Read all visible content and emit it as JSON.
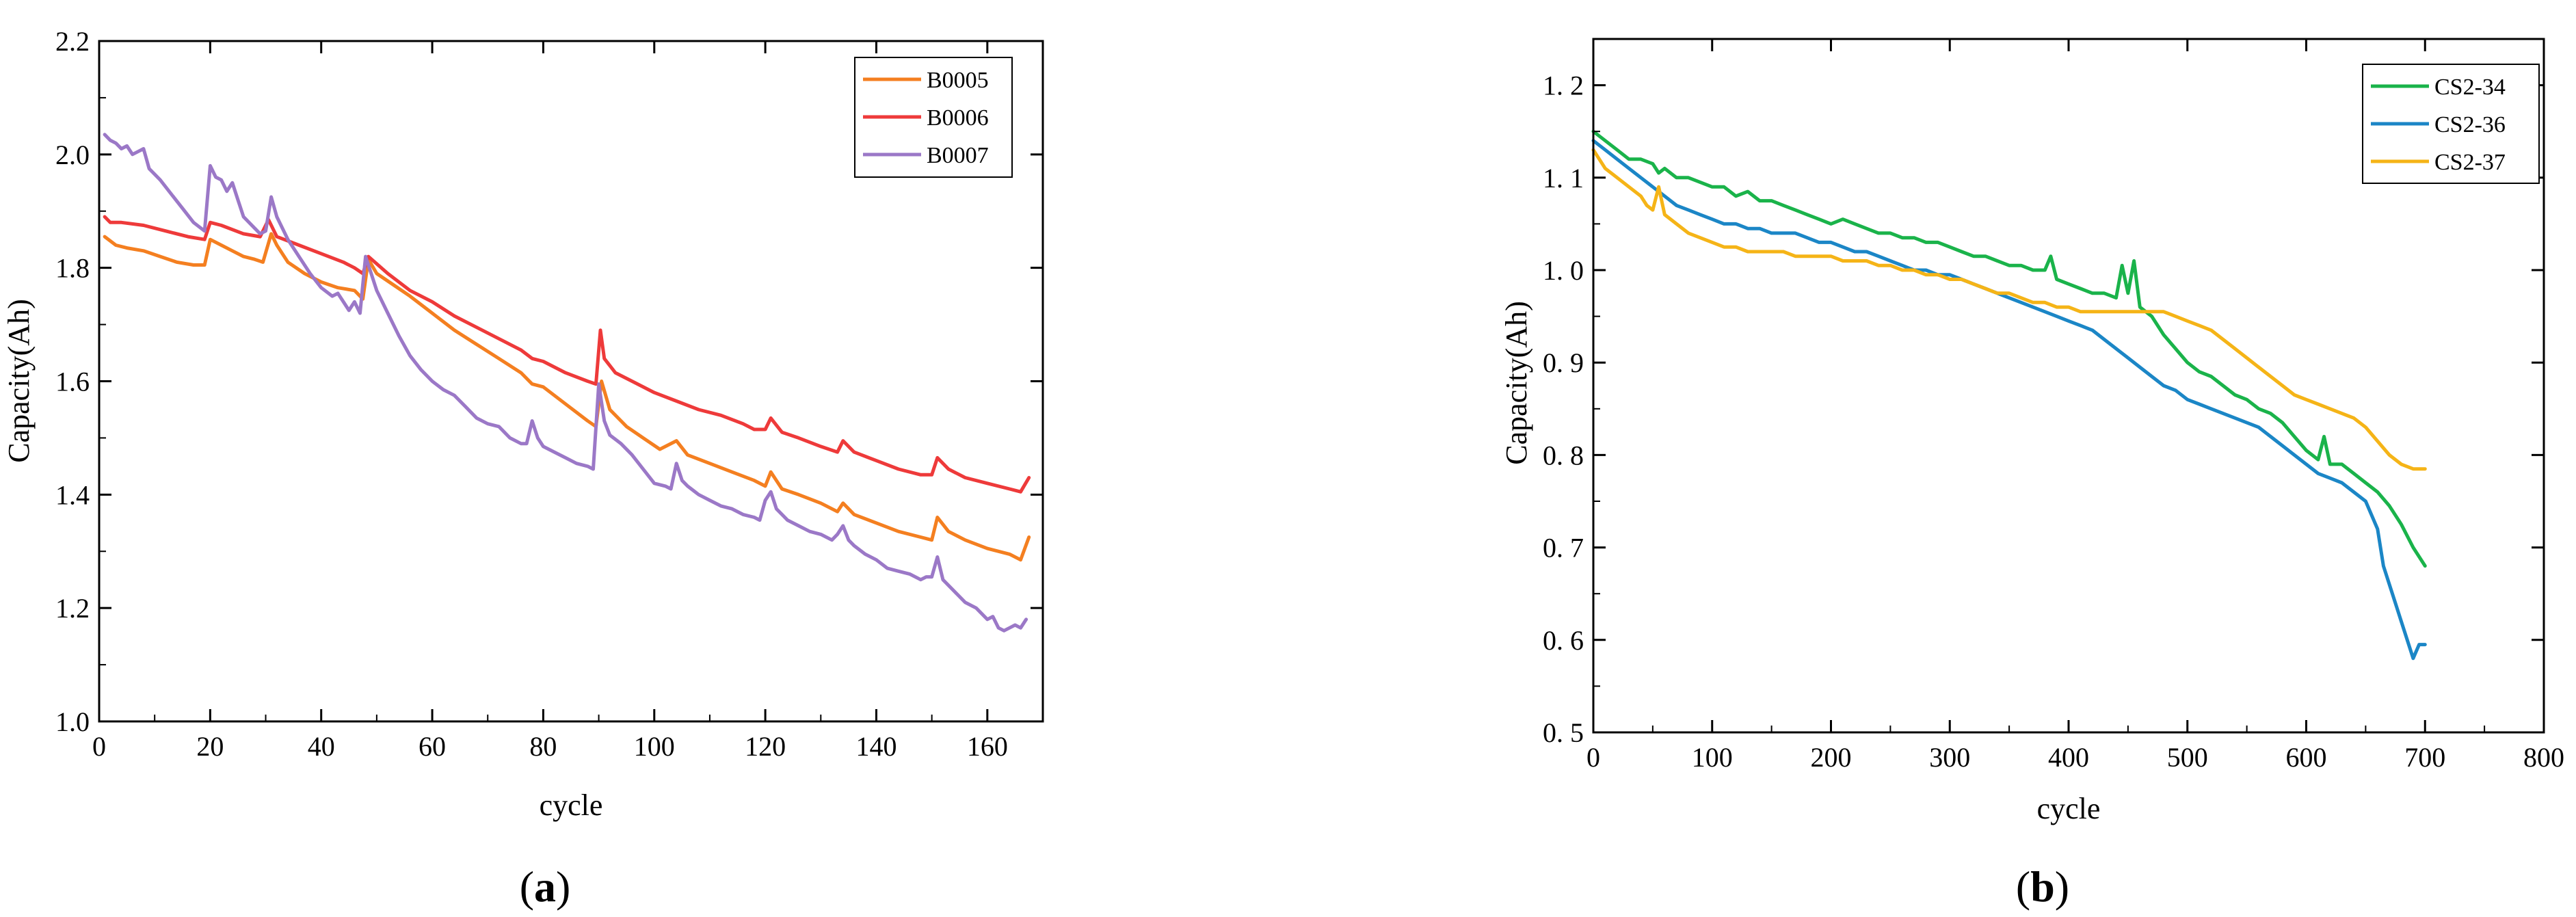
{
  "chart_data": [
    {
      "type": "line",
      "panel_label": {
        "open": "(",
        "letter": "a",
        "close": ")"
      },
      "xlabel": "cycle",
      "ylabel": "Capacity(Ah)",
      "xlim": [
        0,
        170
      ],
      "ylim": [
        1.0,
        2.2
      ],
      "xticks": [
        0,
        20,
        40,
        60,
        80,
        100,
        120,
        140,
        160
      ],
      "yticks": [
        1.0,
        1.2,
        1.4,
        1.6,
        1.8,
        2.0,
        2.2
      ],
      "xtick_labels": [
        "0",
        "20",
        "40",
        "60",
        "80",
        "100",
        "120",
        "140",
        "160"
      ],
      "ytick_labels": [
        "1.0",
        "1.2",
        "1.4",
        "1.6",
        "1.8",
        "2.0",
        "2.2"
      ],
      "legend_position": "top-right",
      "series": [
        {
          "name": "B0005",
          "color": "#F47F20",
          "x": [
            1,
            3,
            5,
            8,
            11,
            14,
            17,
            19,
            20,
            22,
            24,
            26,
            28,
            29.5,
            31,
            32,
            34,
            37,
            40,
            43,
            46,
            47.5,
            48.5,
            50,
            53,
            56,
            60,
            64,
            68,
            72,
            76,
            78,
            80,
            84,
            88,
            89.5,
            90.5,
            92,
            95,
            98,
            101,
            104,
            106,
            110,
            114,
            118,
            120,
            121,
            123,
            126,
            130,
            133,
            134,
            136,
            140,
            144,
            148,
            150,
            151,
            153,
            156,
            160,
            164,
            166,
            167.5
          ],
          "y": [
            1.855,
            1.84,
            1.835,
            1.83,
            1.82,
            1.81,
            1.805,
            1.805,
            1.85,
            1.84,
            1.83,
            1.82,
            1.815,
            1.81,
            1.86,
            1.84,
            1.81,
            1.79,
            1.775,
            1.765,
            1.76,
            1.745,
            1.815,
            1.79,
            1.77,
            1.75,
            1.72,
            1.69,
            1.665,
            1.64,
            1.615,
            1.595,
            1.59,
            1.56,
            1.53,
            1.52,
            1.6,
            1.55,
            1.52,
            1.5,
            1.48,
            1.495,
            1.47,
            1.455,
            1.44,
            1.425,
            1.415,
            1.44,
            1.41,
            1.4,
            1.385,
            1.37,
            1.385,
            1.365,
            1.35,
            1.335,
            1.325,
            1.32,
            1.36,
            1.335,
            1.32,
            1.305,
            1.295,
            1.285,
            1.325
          ]
        },
        {
          "name": "B0006",
          "color": "#EE3A3A",
          "x": [
            1,
            2,
            4,
            8,
            12,
            16,
            19,
            20,
            22,
            26,
            29,
            30.5,
            32,
            36,
            40,
            44,
            46,
            47.5,
            48.5,
            52,
            56,
            60,
            64,
            68,
            72,
            76,
            78,
            80,
            84,
            88,
            89.5,
            90.3,
            91,
            93,
            96,
            100,
            104,
            108,
            112,
            116,
            118,
            120,
            121,
            123,
            126,
            130,
            133,
            134,
            136,
            140,
            144,
            148,
            150,
            151,
            153,
            156,
            160,
            164,
            166,
            167.5
          ],
          "y": [
            1.89,
            1.88,
            1.88,
            1.875,
            1.865,
            1.855,
            1.85,
            1.88,
            1.875,
            1.86,
            1.855,
            1.885,
            1.855,
            1.84,
            1.825,
            1.81,
            1.8,
            1.79,
            1.82,
            1.79,
            1.76,
            1.74,
            1.715,
            1.695,
            1.675,
            1.655,
            1.64,
            1.635,
            1.615,
            1.6,
            1.595,
            1.69,
            1.64,
            1.615,
            1.6,
            1.58,
            1.565,
            1.55,
            1.54,
            1.525,
            1.515,
            1.515,
            1.535,
            1.51,
            1.5,
            1.485,
            1.475,
            1.495,
            1.475,
            1.46,
            1.445,
            1.435,
            1.435,
            1.465,
            1.445,
            1.43,
            1.42,
            1.41,
            1.405,
            1.43
          ]
        },
        {
          "name": "B0007",
          "color": "#9B78C7",
          "x": [
            1,
            2,
            3,
            4,
            5,
            6,
            7,
            8,
            9,
            11,
            13,
            15,
            17,
            19,
            20,
            21,
            22,
            23,
            24,
            25,
            26,
            28,
            29,
            30,
            31,
            32,
            34,
            36,
            38,
            40,
            42,
            43,
            44,
            45,
            46,
            47,
            48,
            49,
            50,
            52,
            54,
            56,
            58,
            60,
            62,
            64,
            66,
            68,
            70,
            72,
            74,
            76,
            77,
            78,
            79,
            80,
            82,
            84,
            86,
            88,
            89,
            90,
            91,
            92,
            94,
            96,
            98,
            100,
            102,
            103,
            104,
            105,
            106,
            108,
            110,
            112,
            114,
            116,
            118,
            119,
            120,
            121,
            122,
            124,
            126,
            128,
            130,
            132,
            133,
            134,
            135,
            136,
            138,
            140,
            142,
            144,
            146,
            148,
            149,
            150,
            151,
            152,
            154,
            156,
            158,
            160,
            161,
            162,
            163,
            164,
            165,
            166,
            167
          ],
          "y": [
            2.035,
            2.025,
            2.02,
            2.01,
            2.015,
            2.0,
            2.005,
            2.01,
            1.975,
            1.955,
            1.93,
            1.905,
            1.88,
            1.865,
            1.98,
            1.96,
            1.955,
            1.935,
            1.95,
            1.92,
            1.89,
            1.87,
            1.86,
            1.865,
            1.925,
            1.89,
            1.85,
            1.82,
            1.79,
            1.765,
            1.75,
            1.755,
            1.74,
            1.725,
            1.74,
            1.72,
            1.82,
            1.79,
            1.76,
            1.72,
            1.68,
            1.645,
            1.62,
            1.6,
            1.585,
            1.575,
            1.555,
            1.535,
            1.525,
            1.52,
            1.5,
            1.49,
            1.49,
            1.53,
            1.5,
            1.485,
            1.475,
            1.465,
            1.455,
            1.45,
            1.445,
            1.595,
            1.53,
            1.505,
            1.49,
            1.47,
            1.445,
            1.42,
            1.415,
            1.41,
            1.455,
            1.425,
            1.415,
            1.4,
            1.39,
            1.38,
            1.375,
            1.365,
            1.36,
            1.355,
            1.39,
            1.405,
            1.375,
            1.355,
            1.345,
            1.335,
            1.33,
            1.32,
            1.33,
            1.345,
            1.32,
            1.31,
            1.295,
            1.285,
            1.27,
            1.265,
            1.26,
            1.25,
            1.255,
            1.255,
            1.29,
            1.25,
            1.23,
            1.21,
            1.2,
            1.18,
            1.185,
            1.165,
            1.16,
            1.165,
            1.17,
            1.165,
            1.18
          ]
        }
      ]
    },
    {
      "type": "line",
      "panel_label": {
        "open": "(",
        "letter": "b",
        "close": ")"
      },
      "xlabel": "cycle",
      "ylabel": "Capacity(Ah)",
      "xlim": [
        0,
        800
      ],
      "ylim": [
        0.5,
        1.25
      ],
      "xticks": [
        0,
        100,
        200,
        300,
        400,
        500,
        600,
        700,
        800
      ],
      "yticks": [
        0.5,
        0.6,
        0.7,
        0.8,
        0.9,
        1.0,
        1.1,
        1.2
      ],
      "xtick_labels": [
        "0",
        "100",
        "200",
        "300",
        "400",
        "500",
        "600",
        "700",
        "800"
      ],
      "ytick_labels": [
        "0. 5",
        "0. 6",
        "0. 7",
        "0. 8",
        "0. 9",
        "1. 0",
        "1. 1",
        "1. 2"
      ],
      "legend_position": "top-right",
      "series": [
        {
          "name": "CS2-34",
          "color": "#1AB34A",
          "x": [
            0,
            10,
            20,
            30,
            40,
            50,
            55,
            60,
            70,
            80,
            90,
            100,
            110,
            120,
            130,
            140,
            150,
            160,
            170,
            180,
            190,
            200,
            210,
            220,
            230,
            240,
            250,
            260,
            270,
            280,
            290,
            300,
            310,
            320,
            330,
            340,
            350,
            360,
            370,
            380,
            385,
            390,
            400,
            410,
            420,
            430,
            440,
            445,
            450,
            455,
            460,
            470,
            480,
            490,
            500,
            510,
            520,
            530,
            540,
            550,
            560,
            570,
            580,
            590,
            600,
            610,
            615,
            620,
            630,
            640,
            650,
            660,
            670,
            680,
            690,
            700
          ],
          "y": [
            1.15,
            1.14,
            1.13,
            1.12,
            1.12,
            1.115,
            1.105,
            1.11,
            1.1,
            1.1,
            1.095,
            1.09,
            1.09,
            1.08,
            1.085,
            1.075,
            1.075,
            1.07,
            1.065,
            1.06,
            1.055,
            1.05,
            1.055,
            1.05,
            1.045,
            1.04,
            1.04,
            1.035,
            1.035,
            1.03,
            1.03,
            1.025,
            1.02,
            1.015,
            1.015,
            1.01,
            1.005,
            1.005,
            1.0,
            1.0,
            1.015,
            0.99,
            0.985,
            0.98,
            0.975,
            0.975,
            0.97,
            1.005,
            0.975,
            1.01,
            0.96,
            0.95,
            0.93,
            0.915,
            0.9,
            0.89,
            0.885,
            0.875,
            0.865,
            0.86,
            0.85,
            0.845,
            0.835,
            0.82,
            0.805,
            0.795,
            0.82,
            0.79,
            0.79,
            0.78,
            0.77,
            0.76,
            0.745,
            0.725,
            0.7,
            0.68
          ]
        },
        {
          "name": "CS2-36",
          "color": "#1B86C6",
          "x": [
            0,
            10,
            20,
            30,
            40,
            50,
            60,
            70,
            80,
            90,
            100,
            110,
            120,
            130,
            140,
            150,
            160,
            170,
            180,
            190,
            200,
            210,
            220,
            230,
            240,
            250,
            260,
            270,
            280,
            290,
            300,
            310,
            320,
            330,
            340,
            350,
            360,
            370,
            380,
            390,
            400,
            410,
            420,
            430,
            440,
            450,
            460,
            470,
            480,
            490,
            500,
            510,
            520,
            530,
            540,
            550,
            560,
            570,
            580,
            590,
            600,
            610,
            620,
            630,
            640,
            650,
            660,
            665,
            670,
            675,
            680,
            685,
            690,
            695,
            700
          ],
          "y": [
            1.14,
            1.13,
            1.12,
            1.11,
            1.1,
            1.09,
            1.08,
            1.07,
            1.065,
            1.06,
            1.055,
            1.05,
            1.05,
            1.045,
            1.045,
            1.04,
            1.04,
            1.04,
            1.035,
            1.03,
            1.03,
            1.025,
            1.02,
            1.02,
            1.015,
            1.01,
            1.005,
            1.0,
            1.0,
            0.995,
            0.995,
            0.99,
            0.985,
            0.98,
            0.975,
            0.97,
            0.965,
            0.96,
            0.955,
            0.95,
            0.945,
            0.94,
            0.935,
            0.925,
            0.915,
            0.905,
            0.895,
            0.885,
            0.875,
            0.87,
            0.86,
            0.855,
            0.85,
            0.845,
            0.84,
            0.835,
            0.83,
            0.82,
            0.81,
            0.8,
            0.79,
            0.78,
            0.775,
            0.77,
            0.76,
            0.75,
            0.72,
            0.68,
            0.66,
            0.64,
            0.62,
            0.6,
            0.58,
            0.595,
            0.595
          ]
        },
        {
          "name": "CS2-37",
          "color": "#F5B417",
          "x": [
            0,
            10,
            20,
            30,
            40,
            45,
            50,
            55,
            60,
            70,
            80,
            90,
            100,
            110,
            120,
            130,
            140,
            150,
            160,
            170,
            180,
            190,
            200,
            210,
            220,
            230,
            240,
            250,
            260,
            270,
            280,
            290,
            300,
            310,
            320,
            330,
            340,
            350,
            360,
            370,
            380,
            390,
            400,
            410,
            420,
            430,
            440,
            450,
            460,
            470,
            480,
            490,
            500,
            510,
            520,
            530,
            540,
            550,
            560,
            570,
            580,
            590,
            600,
            610,
            620,
            630,
            640,
            650,
            660,
            670,
            680,
            690,
            700
          ],
          "y": [
            1.13,
            1.11,
            1.1,
            1.09,
            1.08,
            1.07,
            1.065,
            1.09,
            1.06,
            1.05,
            1.04,
            1.035,
            1.03,
            1.025,
            1.025,
            1.02,
            1.02,
            1.02,
            1.02,
            1.015,
            1.015,
            1.015,
            1.015,
            1.01,
            1.01,
            1.01,
            1.005,
            1.005,
            1.0,
            1.0,
            0.995,
            0.995,
            0.99,
            0.99,
            0.985,
            0.98,
            0.975,
            0.975,
            0.97,
            0.965,
            0.965,
            0.96,
            0.96,
            0.955,
            0.955,
            0.955,
            0.955,
            0.955,
            0.955,
            0.955,
            0.955,
            0.95,
            0.945,
            0.94,
            0.935,
            0.925,
            0.915,
            0.905,
            0.895,
            0.885,
            0.875,
            0.865,
            0.86,
            0.855,
            0.85,
            0.845,
            0.84,
            0.83,
            0.815,
            0.8,
            0.79,
            0.785,
            0.785
          ]
        }
      ]
    }
  ]
}
